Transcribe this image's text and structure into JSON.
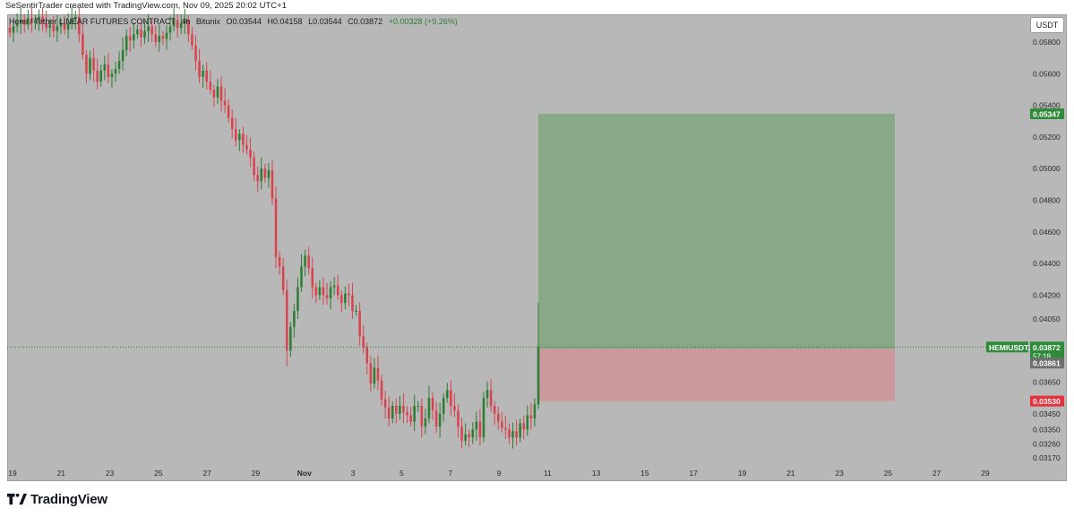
{
  "credit": "SeSentirTrader created with TradingView.com, Nov 09, 2025 20:02 UTC+1",
  "symbol_info": {
    "name": "Hemi / Tether LINEAR FUTURES CONTRACT",
    "timeframe": "4h",
    "exchange": "Bitunix",
    "open": "O0.03544",
    "high": "H0.04158",
    "low": "L0.03544",
    "close": "C0.03872",
    "change": "+0.00328 (+9.26%)"
  },
  "currency_button": "USDT",
  "footer_brand": "TradingView",
  "colors": {
    "background": "#b8b8b8",
    "up_candle": "#2e7d32",
    "down_candle": "#d9434e",
    "target_zone": "#87a987",
    "stop_zone": "#cc9a9c",
    "target_label": "#2e8b3a",
    "stop_label": "#e5323d",
    "last_price_label": "#2e8b3a",
    "price_gray_label": "#6f6f6f"
  },
  "price_labels": {
    "target": "0.05347",
    "stop": "0.03530",
    "symbol_tag": "HEMIUSDT.P",
    "last_price": "0.03872",
    "countdown": "57:18",
    "entry": "0.03861"
  },
  "chart_data": {
    "type": "candlestick",
    "symbol": "HEMIUSDT.P",
    "y_axis_ticks": [
      "0.05800",
      "0.05600",
      "0.05400",
      "0.05200",
      "0.05000",
      "0.04800",
      "0.04600",
      "0.04400",
      "0.04200",
      "0.04050",
      "0.03650",
      "0.03450",
      "0.03350",
      "0.03260",
      "0.03170"
    ],
    "x_axis_ticks": [
      "19",
      "21",
      "23",
      "25",
      "27",
      "29",
      "Nov",
      "3",
      "5",
      "7",
      "9",
      "11",
      "13",
      "15",
      "17",
      "19",
      "21",
      "23",
      "25",
      "27",
      "29"
    ],
    "ylim": [
      0.0312,
      0.0597
    ],
    "series": [
      {
        "closes": [
          0.0586,
          0.059,
          0.0592,
          0.0594,
          0.0591,
          0.0595,
          0.0592,
          0.0594,
          0.0596,
          0.0592,
          0.0589,
          0.0591,
          0.0587,
          0.059,
          0.0592,
          0.0588,
          0.0592,
          0.0595,
          0.0596,
          0.0585,
          0.0572,
          0.056,
          0.057,
          0.0562,
          0.0555,
          0.0562,
          0.0566,
          0.0558,
          0.056,
          0.0563,
          0.0568,
          0.0575,
          0.0584,
          0.0581,
          0.0585,
          0.0588,
          0.0583,
          0.0587,
          0.059,
          0.0585,
          0.058,
          0.0584,
          0.0582,
          0.0586,
          0.059,
          0.0594,
          0.0589,
          0.0592,
          0.0594,
          0.0585,
          0.0578,
          0.0568,
          0.0558,
          0.0562,
          0.0555,
          0.055,
          0.0545,
          0.0552,
          0.0543,
          0.054,
          0.0532,
          0.0525,
          0.0518,
          0.0522,
          0.0515,
          0.0512,
          0.0507,
          0.0496,
          0.0492,
          0.05,
          0.0494,
          0.0499,
          0.0481,
          0.0444,
          0.0438,
          0.0423,
          0.0385,
          0.04,
          0.041,
          0.0425,
          0.0438,
          0.0445,
          0.0437,
          0.0425,
          0.042,
          0.0425,
          0.042,
          0.0418,
          0.0425,
          0.0426,
          0.042,
          0.0415,
          0.0421,
          0.042,
          0.041,
          0.041,
          0.0394,
          0.0387,
          0.0377,
          0.0364,
          0.0374,
          0.0366,
          0.0354,
          0.0349,
          0.0342,
          0.035,
          0.0345,
          0.035,
          0.0346,
          0.0344,
          0.034,
          0.035,
          0.035,
          0.0337,
          0.0342,
          0.0355,
          0.0347,
          0.0337,
          0.0345,
          0.0355,
          0.036,
          0.035,
          0.0347,
          0.0337,
          0.0328,
          0.0332,
          0.033,
          0.0335,
          0.034,
          0.033,
          0.0355,
          0.036,
          0.035,
          0.0345,
          0.034,
          0.0336,
          0.0335,
          0.033,
          0.0334,
          0.033,
          0.0339,
          0.0335,
          0.0344,
          0.0342,
          0.0351,
          0.0387
        ]
      }
    ],
    "target_price": 0.05347,
    "stop_price": 0.0353,
    "entry_price": 0.03861,
    "last_price": 0.03872,
    "grid": false
  }
}
